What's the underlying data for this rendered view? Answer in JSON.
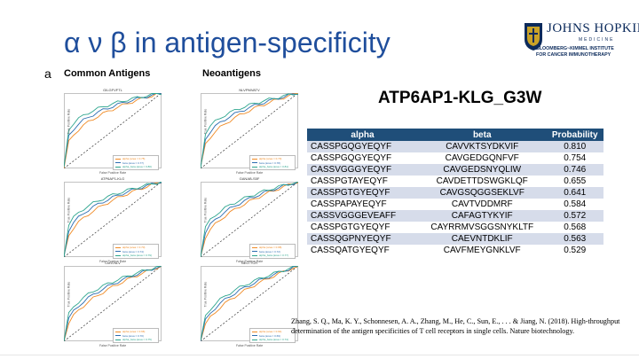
{
  "title": "α ν β in antigen-specificity",
  "logo": {
    "name": "JOHNS HOPKINS",
    "sub": "MEDICINE",
    "institute_line1": "BLOOMBERG~KIMMEL INSTITUTE",
    "institute_line2": "FOR CANCER IMMUNOTHERAPY"
  },
  "figure": {
    "panel_letter": "a",
    "left_heading": "Common Antigens",
    "right_heading": "Neoantigens",
    "plots": [
      {
        "title": "GILGFVFTL",
        "legend": [
          "alpha (area = 0.75)",
          "beta (area = 0.77)",
          "alpha_beta (area = 0.80)"
        ]
      },
      {
        "title": "NLVPMVATV",
        "legend": [
          "alpha (area = 0.73)",
          "beta (area = 0.78)",
          "alpha_beta (area = 0.81)"
        ]
      },
      {
        "title": "ATP6AP1-KLG",
        "legend": [
          "alpha (area = 0.70)",
          "beta (area = 0.74)",
          "alpha_beta (area = 0.79)"
        ]
      },
      {
        "title": "GANAB-S5F",
        "legend": [
          "alpha (area = 0.68)",
          "beta (area = 0.72)",
          "alpha_beta (area = 0.77)"
        ]
      },
      {
        "title": "CMV-NLV",
        "legend": [
          "alpha (area = 0.66)",
          "beta (area = 0.70)",
          "alpha_beta (area = 0.75)"
        ]
      },
      {
        "title": "NEO-TCR",
        "legend": [
          "alpha (area = 0.64)",
          "beta (area = 0.69)",
          "alpha_beta (area = 0.74)"
        ]
      }
    ],
    "axis_x_label": "False Positive Rate",
    "axis_y_label": "True Positive Rate"
  },
  "epitope_title": "ATP6AP1-KLG_G3W",
  "table": {
    "headers": [
      "alpha",
      "beta",
      "Probability"
    ],
    "rows": [
      [
        "CASSPGQGYEQYF",
        "CAVVKTSYDKVIF",
        "0.810"
      ],
      [
        "CASSPGQGYEQYF",
        "CAVGEDGQNFVF",
        "0.754"
      ],
      [
        "CASSVGGGYEQYF",
        "CAVGEDSNYQLIW",
        "0.746"
      ],
      [
        "CASSPGTAYEQYF",
        "CAVDETTDSWGKLQF",
        "0.655"
      ],
      [
        "CASSPGTGYEQYF",
        "CAVGSQGGSEKLVF",
        "0.641"
      ],
      [
        "CASSPAPAYEQYF",
        "CAVTVDDMRF",
        "0.584"
      ],
      [
        "CASSVGGGEVEAFF",
        "CAFAGTYKYIF",
        "0.572"
      ],
      [
        "CASSPGTGYEQYF",
        "CAYRRMVSGGSNYKLTF",
        "0.568"
      ],
      [
        "CASSQGPNYEQYF",
        "CAEVNTDKLIF",
        "0.563"
      ],
      [
        "CASSQATGYEQYF",
        "CAVFMEYGNKLVF",
        "0.529"
      ]
    ]
  },
  "citation": "Zhang, S. Q., Ma, K. Y., Schonnesen, A. A., Zhang, M., He, C., Sun, E., . . . & Jiang, N. (2018). High-throughput determination of the antigen specificities of T cell receptors in single cells. Nature biotechnology.",
  "colors": {
    "title": "#1f4e9c",
    "table_header": "#1f4e79",
    "table_band": "#d6dcea",
    "alpha": "#f08a24",
    "beta": "#2b6cb0",
    "alpha_beta": "#2ca58d",
    "diagonal": "#333333"
  }
}
